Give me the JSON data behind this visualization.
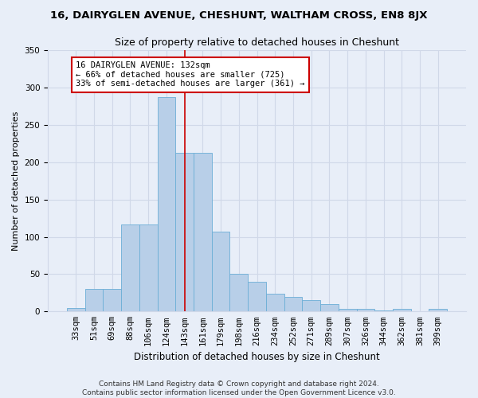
{
  "title": "16, DAIRYGLEN AVENUE, CHESHUNT, WALTHAM CROSS, EN8 8JX",
  "subtitle": "Size of property relative to detached houses in Cheshunt",
  "xlabel_bottom": "Distribution of detached houses by size in Cheshunt",
  "ylabel": "Number of detached properties",
  "footer_line1": "Contains HM Land Registry data © Crown copyright and database right 2024.",
  "footer_line2": "Contains public sector information licensed under the Open Government Licence v3.0.",
  "annotation_line1": "16 DAIRYGLEN AVENUE: 132sqm",
  "annotation_line2": "← 66% of detached houses are smaller (725)",
  "annotation_line3": "33% of semi-detached houses are larger (361) →",
  "categories": [
    "33sqm",
    "51sqm",
    "69sqm",
    "88sqm",
    "106sqm",
    "124sqm",
    "143sqm",
    "161sqm",
    "179sqm",
    "198sqm",
    "216sqm",
    "234sqm",
    "252sqm",
    "271sqm",
    "289sqm",
    "307sqm",
    "326sqm",
    "344sqm",
    "362sqm",
    "381sqm",
    "399sqm"
  ],
  "values": [
    5,
    30,
    30,
    117,
    117,
    287,
    213,
    213,
    107,
    50,
    40,
    24,
    19,
    15,
    10,
    4,
    4,
    1,
    4,
    0,
    4
  ],
  "bar_color": "#b8cfe8",
  "bar_edge_color": "#6baed6",
  "bg_color": "#e8eef8",
  "grid_color": "#d0d8e8",
  "annotation_box_color": "#ffffff",
  "annotation_box_edge": "#cc0000",
  "vline_x": 6.0,
  "vline_color": "#cc0000",
  "ylim": [
    0,
    350
  ],
  "yticks": [
    0,
    50,
    100,
    150,
    200,
    250,
    300,
    350
  ],
  "title_fontsize": 9.5,
  "subtitle_fontsize": 9,
  "ylabel_fontsize": 8,
  "xlabel_fontsize": 8.5,
  "tick_fontsize": 7.5,
  "ann_fontsize": 7.5,
  "footer_fontsize": 6.5
}
